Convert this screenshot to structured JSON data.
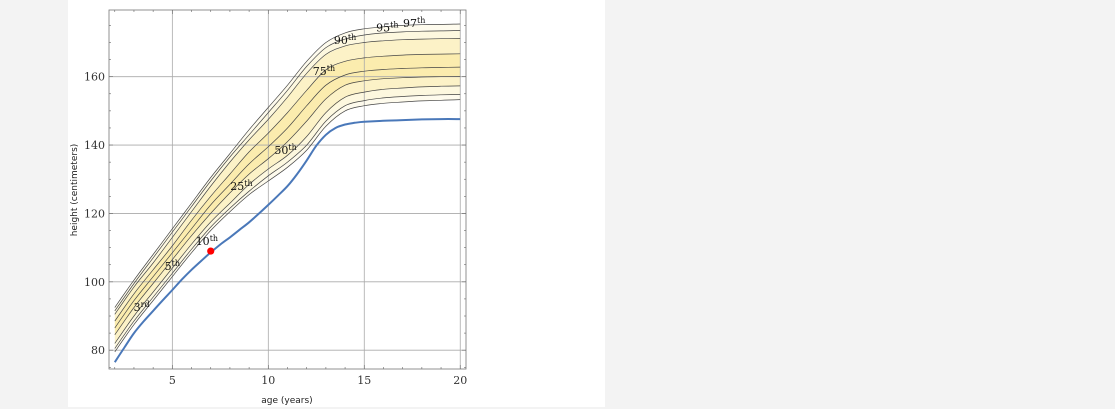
{
  "chart_data": {
    "type": "line",
    "xlabel": "age (years)",
    "ylabel": "height (centimeters)",
    "xlim": [
      1.7,
      20.3
    ],
    "ylim": [
      74.5,
      179.5
    ],
    "x_ticks": [
      5,
      10,
      15,
      20
    ],
    "y_ticks": [
      80,
      100,
      120,
      140,
      160
    ],
    "grid": true,
    "band_color": "#f7dd6c",
    "percentile_line_color": "#444444",
    "patient_line_color": "#4a78b9",
    "point_color": "#ff0000",
    "percentile_labels": [
      {
        "base": "3",
        "sup": "rd",
        "x": 3.4,
        "y": 91.5
      },
      {
        "base": "5",
        "sup": "th",
        "x": 5.0,
        "y": 103.5
      },
      {
        "base": "10",
        "sup": "th",
        "x": 6.8,
        "y": 110.8
      },
      {
        "base": "25",
        "sup": "th",
        "x": 8.6,
        "y": 126.8
      },
      {
        "base": "50",
        "sup": "th",
        "x": 10.9,
        "y": 137.4
      },
      {
        "base": "75",
        "sup": "th",
        "x": 7.6,
        "y": 180.0
      },
      {
        "base": "90",
        "sup": "th",
        "x": 14.0,
        "y": 169.5
      },
      {
        "base": "95",
        "sup": "th",
        "x": 16.2,
        "y": 173.2
      },
      {
        "base": "97",
        "sup": "th",
        "x": 17.6,
        "y": 174.5
      }
    ],
    "x": [
      2,
      3,
      4,
      5,
      6,
      7,
      8,
      9,
      10,
      11,
      12,
      13,
      14,
      15,
      16,
      17,
      18,
      19,
      20
    ],
    "series": [
      {
        "values": [
          79.5,
          87.5,
          94.5,
          101.5,
          108.5,
          115.0,
          120.5,
          125.5,
          129.5,
          133.5,
          138.5,
          145.5,
          150.0,
          151.5,
          152.2,
          152.6,
          152.9,
          153.1,
          153.3
        ]
      },
      {
        "values": [
          80.5,
          88.5,
          95.5,
          102.5,
          109.5,
          116.0,
          121.5,
          126.5,
          131.0,
          135.0,
          140.0,
          147.0,
          151.5,
          153.0,
          153.8,
          154.2,
          154.5,
          154.7,
          154.8
        ]
      },
      {
        "values": [
          82.0,
          90.0,
          97.0,
          104.0,
          111.0,
          117.5,
          123.0,
          128.5,
          133.0,
          137.0,
          142.5,
          149.5,
          154.0,
          155.5,
          156.3,
          156.7,
          157.0,
          157.2,
          157.3
        ]
      },
      {
        "values": [
          84.5,
          92.5,
          99.5,
          106.5,
          113.5,
          120.0,
          126.0,
          131.5,
          136.0,
          141.0,
          147.0,
          153.5,
          157.5,
          158.8,
          159.4,
          159.7,
          159.9,
          160.0,
          160.1
        ]
      },
      {
        "values": [
          86.5,
          94.5,
          101.5,
          108.5,
          115.5,
          122.5,
          128.5,
          134.5,
          139.5,
          145.0,
          151.5,
          157.5,
          160.5,
          161.6,
          162.1,
          162.4,
          162.6,
          162.7,
          162.8
        ]
      },
      {
        "values": [
          88.5,
          96.5,
          103.5,
          110.5,
          118.0,
          125.0,
          131.5,
          138.0,
          143.5,
          149.5,
          156.0,
          162.0,
          164.5,
          165.5,
          166.0,
          166.3,
          166.5,
          166.6,
          166.7
        ]
      },
      {
        "values": [
          90.5,
          98.5,
          105.5,
          113.0,
          120.5,
          128.0,
          135.0,
          141.5,
          147.5,
          154.0,
          161.0,
          166.5,
          169.0,
          170.0,
          170.5,
          170.8,
          171.0,
          171.1,
          171.2
        ]
      },
      {
        "values": [
          91.5,
          99.5,
          107.0,
          114.5,
          122.0,
          129.5,
          136.5,
          143.0,
          149.5,
          156.0,
          163.0,
          168.5,
          171.0,
          172.2,
          172.8,
          173.1,
          173.3,
          173.4,
          173.5
        ]
      },
      {
        "values": [
          92.5,
          100.5,
          108.0,
          115.5,
          123.0,
          130.5,
          137.5,
          144.5,
          151.0,
          157.5,
          164.5,
          170.0,
          172.8,
          174.0,
          174.6,
          175.0,
          175.2,
          175.3,
          175.4
        ]
      }
    ],
    "patient_series": {
      "x": [
        2.0,
        2.5,
        3.0,
        3.5,
        4.0,
        4.5,
        5.0,
        5.5,
        6.0,
        6.5,
        7.0,
        7.5,
        8.0,
        8.5,
        9.0,
        9.5,
        10.0,
        10.5,
        11.0,
        11.5,
        12.0,
        12.5,
        13.0,
        13.5,
        14.0,
        14.5,
        15.0,
        16.0,
        17.0,
        18.0,
        19.0,
        20.0
      ],
      "values": [
        76.5,
        80.8,
        85.0,
        88.4,
        91.5,
        94.6,
        97.6,
        100.7,
        103.5,
        106.1,
        108.6,
        110.9,
        113.0,
        115.2,
        117.4,
        119.9,
        122.5,
        125.2,
        128.0,
        131.5,
        135.5,
        139.8,
        143.0,
        145.0,
        146.0,
        146.5,
        146.8,
        147.1,
        147.3,
        147.5,
        147.6,
        147.6
      ]
    },
    "point": {
      "x": 7.0,
      "y": 109.0
    }
  }
}
